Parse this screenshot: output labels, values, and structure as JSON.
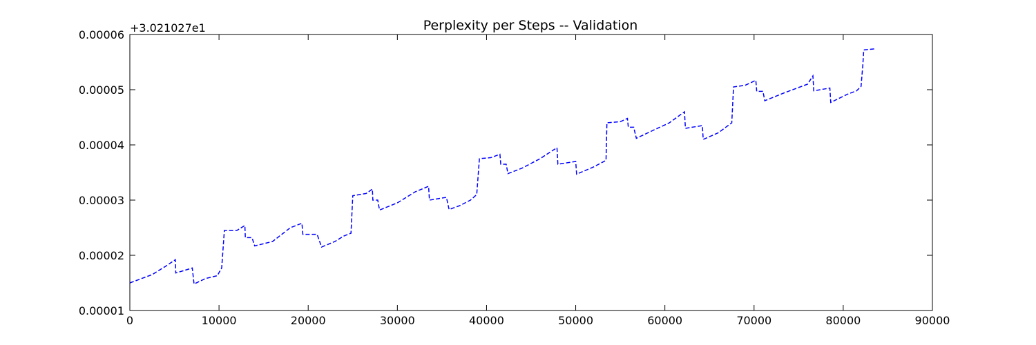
{
  "chart_data": {
    "type": "line",
    "title": "Perplexity per Steps -- Validation",
    "xlabel": "",
    "ylabel": "",
    "y_offset_label": "+3.021027e1",
    "xlim": [
      0,
      90000
    ],
    "ylim": [
      1e-05,
      6e-05
    ],
    "x_ticks": [
      0,
      10000,
      20000,
      30000,
      40000,
      50000,
      60000,
      70000,
      80000,
      90000
    ],
    "x_tick_labels": [
      "0",
      "10000",
      "20000",
      "30000",
      "40000",
      "50000",
      "60000",
      "70000",
      "80000",
      "90000"
    ],
    "y_ticks": [
      1e-05,
      2e-05,
      3e-05,
      4e-05,
      5e-05,
      6e-05
    ],
    "y_tick_labels": [
      "0.00001",
      "0.00002",
      "0.00003",
      "0.00004",
      "0.00005",
      "0.00006"
    ],
    "grid": false,
    "series": [
      {
        "color": "#0000ff",
        "line_style": "dashed",
        "points": [
          [
            0,
            1.5e-05
          ],
          [
            2500,
            1.65e-05
          ],
          [
            4000,
            1.8e-05
          ],
          [
            5100,
            1.92e-05
          ],
          [
            5150,
            1.68e-05
          ],
          [
            6000,
            1.72e-05
          ],
          [
            7000,
            1.77e-05
          ],
          [
            7200,
            1.48e-05
          ],
          [
            8500,
            1.58e-05
          ],
          [
            9800,
            1.63e-05
          ],
          [
            10300,
            1.77e-05
          ],
          [
            10600,
            2.45e-05
          ],
          [
            12000,
            2.45e-05
          ],
          [
            12900,
            2.54e-05
          ],
          [
            12950,
            2.32e-05
          ],
          [
            13700,
            2.32e-05
          ],
          [
            14000,
            2.17e-05
          ],
          [
            16000,
            2.25e-05
          ],
          [
            18000,
            2.5e-05
          ],
          [
            19300,
            2.58e-05
          ],
          [
            19400,
            2.38e-05
          ],
          [
            21000,
            2.38e-05
          ],
          [
            21500,
            2.15e-05
          ],
          [
            23000,
            2.25e-05
          ],
          [
            24000,
            2.35e-05
          ],
          [
            24800,
            2.4e-05
          ],
          [
            25000,
            3.08e-05
          ],
          [
            26500,
            3.12e-05
          ],
          [
            27200,
            3.2e-05
          ],
          [
            27250,
            3e-05
          ],
          [
            27800,
            3e-05
          ],
          [
            28000,
            2.82e-05
          ],
          [
            30000,
            2.95e-05
          ],
          [
            32000,
            3.15e-05
          ],
          [
            33500,
            3.25e-05
          ],
          [
            33600,
            3e-05
          ],
          [
            35500,
            3.05e-05
          ],
          [
            35800,
            2.83e-05
          ],
          [
            37000,
            2.9e-05
          ],
          [
            38200,
            3e-05
          ],
          [
            38900,
            3.1e-05
          ],
          [
            39200,
            3.75e-05
          ],
          [
            40500,
            3.77e-05
          ],
          [
            41500,
            3.83e-05
          ],
          [
            41600,
            3.65e-05
          ],
          [
            42200,
            3.65e-05
          ],
          [
            42400,
            3.48e-05
          ],
          [
            44000,
            3.58e-05
          ],
          [
            46000,
            3.75e-05
          ],
          [
            47900,
            3.95e-05
          ],
          [
            48000,
            3.65e-05
          ],
          [
            50000,
            3.7e-05
          ],
          [
            50100,
            3.47e-05
          ],
          [
            52000,
            3.6e-05
          ],
          [
            53400,
            3.72e-05
          ],
          [
            53500,
            4.4e-05
          ],
          [
            55000,
            4.42e-05
          ],
          [
            55800,
            4.48e-05
          ],
          [
            55900,
            4.32e-05
          ],
          [
            56500,
            4.32e-05
          ],
          [
            56800,
            4.12e-05
          ],
          [
            58500,
            4.25e-05
          ],
          [
            60500,
            4.4e-05
          ],
          [
            62200,
            4.6e-05
          ],
          [
            62300,
            4.3e-05
          ],
          [
            64200,
            4.35e-05
          ],
          [
            64300,
            4.1e-05
          ],
          [
            66000,
            4.22e-05
          ],
          [
            67500,
            4.4e-05
          ],
          [
            67700,
            5.05e-05
          ],
          [
            69000,
            5.08e-05
          ],
          [
            70200,
            5.17e-05
          ],
          [
            70300,
            4.97e-05
          ],
          [
            71000,
            4.97e-05
          ],
          [
            71200,
            4.8e-05
          ],
          [
            73500,
            4.95e-05
          ],
          [
            76000,
            5.1e-05
          ],
          [
            76600,
            5.25e-05
          ],
          [
            76700,
            4.98e-05
          ],
          [
            78500,
            5.03e-05
          ],
          [
            78600,
            4.77e-05
          ],
          [
            80500,
            4.92e-05
          ],
          [
            81500,
            4.98e-05
          ],
          [
            82000,
            5.06e-05
          ],
          [
            82200,
            5.45e-05
          ],
          [
            82300,
            5.72e-05
          ],
          [
            83500,
            5.74e-05
          ]
        ]
      }
    ]
  }
}
